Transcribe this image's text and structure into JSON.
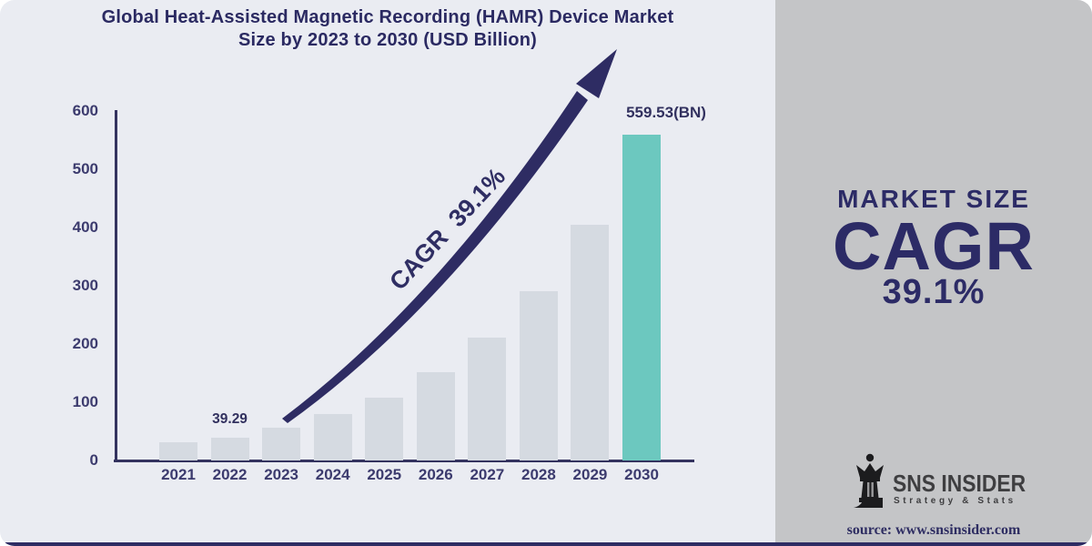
{
  "chart_data": {
    "type": "bar",
    "title": "Global Heat-Assisted Magnetic Recording (HAMR) Device Market Size by 2023 to 2030 (USD Billion)",
    "title_lines": [
      "Global Heat-Assisted Magnetic Recording (HAMR) Device Market",
      "Size by 2023 to 2030 (USD Billion)"
    ],
    "categories": [
      "2021",
      "2022",
      "2023",
      "2024",
      "2025",
      "2026",
      "2027",
      "2028",
      "2029",
      "2030"
    ],
    "values": [
      30.5,
      39.29,
      57,
      79,
      108.5,
      151,
      210.5,
      290,
      404.5,
      559.53
    ],
    "xlabel": "",
    "ylabel": "",
    "ylim": [
      0,
      600
    ],
    "yticks": [
      0,
      100,
      200,
      300,
      400,
      500,
      600
    ],
    "grid": false,
    "legend": false,
    "bar_color": "#d5dae1",
    "highlight_year": "2030",
    "highlight_color": "#6cc8bf",
    "annotations": [
      {
        "year": "2022",
        "text": "39.29"
      },
      {
        "year": "2030",
        "text": "559.53(BN)"
      }
    ],
    "trend_label": "CAGR 39.1%",
    "trend_arrow_color": "#2e2c63"
  },
  "right_panel": {
    "market_size_label": "MARKET SIZE",
    "cagr_label": "CAGR",
    "cagr_value": "39.1%",
    "background": "#c4c5c7"
  },
  "brand": {
    "name": "SNS INSIDER",
    "tagline": "Strategy & Stats",
    "source": "source: www.snsinsider.com"
  },
  "colors": {
    "navy": "#2e2c63",
    "chart_background": "#eaecf2",
    "axis": "#34335f",
    "bar": "#d5dae1",
    "highlight_bar": "#6cc8bf"
  }
}
